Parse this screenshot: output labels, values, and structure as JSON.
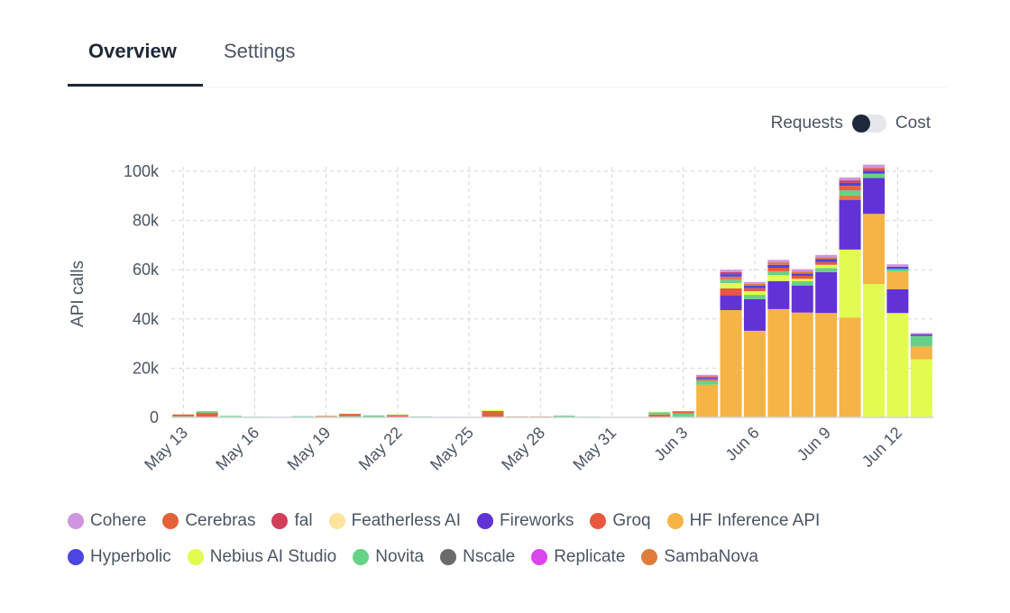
{
  "tabs": [
    {
      "label": "Overview",
      "active": true
    },
    {
      "label": "Settings",
      "active": false
    }
  ],
  "toggle": {
    "left_label": "Requests",
    "right_label": "Cost",
    "selected": "Requests"
  },
  "chart_data": {
    "type": "bar",
    "stacked": true,
    "ylabel": "API calls",
    "ylim": [
      0,
      100000
    ],
    "yticks": [
      0,
      20000,
      40000,
      60000,
      80000,
      100000
    ],
    "ytick_labels": [
      "0",
      "20k",
      "40k",
      "60k",
      "80k",
      "100k"
    ],
    "grid": true,
    "legend_position": "bottom",
    "categories": [
      "May 13",
      "May 14",
      "May 15",
      "May 16",
      "May 17",
      "May 18",
      "May 19",
      "May 20",
      "May 21",
      "May 22",
      "May 23",
      "May 24",
      "May 25",
      "May 26",
      "May 27",
      "May 28",
      "May 29",
      "May 30",
      "May 31",
      "Jun 1",
      "Jun 2",
      "Jun 3",
      "Jun 4",
      "Jun 5",
      "Jun 6",
      "Jun 7",
      "Jun 8",
      "Jun 9",
      "Jun 10",
      "Jun 11",
      "Jun 12",
      "Jun 13"
    ],
    "xtick_labels": [
      "May 13",
      "May 16",
      "May 19",
      "May 22",
      "May 25",
      "May 28",
      "May 31",
      "Jun 3",
      "Jun 6",
      "Jun 9",
      "Jun 12"
    ],
    "series": [
      {
        "name": "Cohere",
        "color": "#cf95e3"
      },
      {
        "name": "Cerebras",
        "color": "#e4623a"
      },
      {
        "name": "fal",
        "color": "#d23f58"
      },
      {
        "name": "Featherless AI",
        "color": "#fde49a"
      },
      {
        "name": "Fireworks",
        "color": "#6133d6"
      },
      {
        "name": "Groq",
        "color": "#e9573f"
      },
      {
        "name": "HF Inference API",
        "color": "#f5b445"
      },
      {
        "name": "Hyperbolic",
        "color": "#4c45e0"
      },
      {
        "name": "Nebius AI Studio",
        "color": "#e2fb50"
      },
      {
        "name": "Novita",
        "color": "#66d286"
      },
      {
        "name": "Nscale",
        "color": "#6b6b6b"
      },
      {
        "name": "Replicate",
        "color": "#d946ef"
      },
      {
        "name": "SambaNova",
        "color": "#e07c3a"
      }
    ],
    "stacks": [
      [
        [
          "Novita",
          400
        ],
        [
          "Cerebras",
          800
        ]
      ],
      [
        [
          "Cerebras",
          1800
        ],
        [
          "Novita",
          700
        ]
      ],
      [
        [
          "Novita",
          600
        ]
      ],
      [
        [
          "Novita",
          300
        ]
      ],
      [
        [
          "Novita",
          200
        ]
      ],
      [
        [
          "Novita",
          500
        ]
      ],
      [
        [
          "Novita",
          200
        ],
        [
          "SambaNova",
          400
        ]
      ],
      [
        [
          "Novita",
          500
        ],
        [
          "Cerebras",
          600
        ],
        [
          "SambaNova",
          400
        ]
      ],
      [
        [
          "Novita",
          800
        ]
      ],
      [
        [
          "Cerebras",
          800
        ],
        [
          "Novita",
          300
        ],
        [
          "Nebius AI Studio",
          200
        ]
      ],
      [
        [
          "Novita",
          400
        ]
      ],
      [
        [
          "Novita",
          200
        ]
      ],
      [
        [
          "Novita",
          100
        ]
      ],
      [
        [
          "Cerebras",
          2600
        ],
        [
          "Nebius AI Studio",
          400
        ]
      ],
      [
        [
          "SambaNova",
          400
        ]
      ],
      [
        [
          "SambaNova",
          400
        ]
      ],
      [
        [
          "Novita",
          700
        ]
      ],
      [
        [
          "Novita",
          300
        ]
      ],
      [
        [
          "Novita",
          100
        ]
      ],
      [
        [
          "Novita",
          100
        ]
      ],
      [
        [
          "Cerebras",
          1200
        ],
        [
          "Novita",
          900
        ],
        [
          "Nebius AI Studio",
          200
        ]
      ],
      [
        [
          "Novita",
          1600
        ],
        [
          "Cerebras",
          900
        ]
      ],
      [
        [
          "HF Inference API",
          13300
        ],
        [
          "Novita",
          1600
        ],
        [
          "Cerebras",
          800
        ],
        [
          "Hyperbolic",
          500
        ],
        [
          "Groq",
          500
        ],
        [
          "Cohere",
          600
        ]
      ],
      [
        [
          "HF Inference API",
          43600
        ],
        [
          "Fireworks",
          6000
        ],
        [
          "Groq",
          2800
        ],
        [
          "Nebius AI Studio",
          2200
        ],
        [
          "Novita",
          1400
        ],
        [
          "SambaNova",
          1200
        ],
        [
          "Hyperbolic",
          1000
        ],
        [
          "fal",
          800
        ],
        [
          "Cohere",
          1000
        ]
      ],
      [
        [
          "HF Inference API",
          35200
        ],
        [
          "Fireworks",
          12800
        ],
        [
          "Novita",
          1800
        ],
        [
          "Nebius AI Studio",
          1500
        ],
        [
          "Groq",
          1200
        ],
        [
          "Hyperbolic",
          1000
        ],
        [
          "SambaNova",
          800
        ],
        [
          "Cohere",
          700
        ]
      ],
      [
        [
          "HF Inference API",
          44000
        ],
        [
          "Fireworks",
          11400
        ],
        [
          "Nebius AI Studio",
          2400
        ],
        [
          "Novita",
          1600
        ],
        [
          "Groq",
          1400
        ],
        [
          "Hyperbolic",
          1200
        ],
        [
          "SambaNova",
          1000
        ],
        [
          "Cohere",
          1000
        ]
      ],
      [
        [
          "HF Inference API",
          42600
        ],
        [
          "Fireworks",
          11000
        ],
        [
          "Novita",
          1800
        ],
        [
          "Nebius AI Studio",
          900
        ],
        [
          "Groq",
          1200
        ],
        [
          "Hyperbolic",
          1000
        ],
        [
          "SambaNova",
          800
        ],
        [
          "Cohere",
          900
        ]
      ],
      [
        [
          "HF Inference API",
          42400
        ],
        [
          "Fireworks",
          16600
        ],
        [
          "Novita",
          1700
        ],
        [
          "Nebius AI Studio",
          1300
        ],
        [
          "Groq",
          1200
        ],
        [
          "Hyperbolic",
          1100
        ],
        [
          "SambaNova",
          800
        ],
        [
          "Cohere",
          900
        ]
      ],
      [
        [
          "HF Inference API",
          40600
        ],
        [
          "Nebius AI Studio",
          27600
        ],
        [
          "Fireworks",
          20200
        ],
        [
          "SambaNova",
          1800
        ],
        [
          "Novita",
          2000
        ],
        [
          "Cerebras",
          1900
        ],
        [
          "Hyperbolic",
          1200
        ],
        [
          "fal",
          1000
        ],
        [
          "Cohere",
          1200
        ]
      ],
      [
        [
          "Nebius AI Studio",
          54200
        ],
        [
          "HF Inference API",
          28500
        ],
        [
          "Fireworks",
          14600
        ],
        [
          "Novita",
          1700
        ],
        [
          "Hyperbolic",
          1200
        ],
        [
          "Groq",
          1200
        ],
        [
          "Cohere",
          1300
        ]
      ],
      [
        [
          "Nebius AI Studio",
          42400
        ],
        [
          "Fireworks",
          9700
        ],
        [
          "HF Inference API",
          7200
        ],
        [
          "Novita",
          1000
        ],
        [
          "Hyperbolic",
          900
        ],
        [
          "Cohere",
          1000
        ]
      ],
      [
        [
          "Nebius AI Studio",
          23600
        ],
        [
          "HF Inference API",
          5200
        ],
        [
          "Novita",
          4300
        ],
        [
          "Fireworks",
          600
        ],
        [
          "Cohere",
          600
        ]
      ]
    ]
  }
}
